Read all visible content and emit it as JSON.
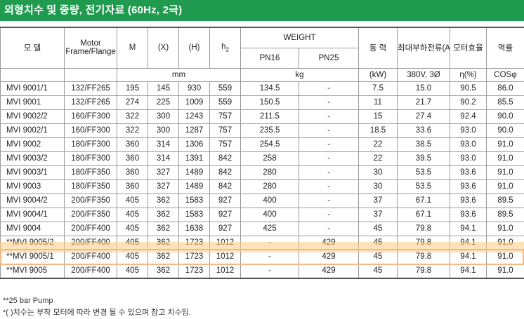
{
  "title": "외형치수 및 중량, 전기자료 (60Hz, 2극)",
  "headers": {
    "model": "모 델",
    "motor": "Motor",
    "frame": "Frame/Flange",
    "m": "M",
    "x": "(X)",
    "h": "(H)",
    "h2": "h",
    "h2_sub": "2",
    "weight": "WEIGHT",
    "pn16": "PN16",
    "pn25": "PN25",
    "power": "동 력",
    "current": "최대부하전류(A)",
    "efficiency": "모터효율",
    "pf": "역률"
  },
  "units": {
    "mm": "mm",
    "kg": "kg",
    "power": "(kW)",
    "current": "380V, 3Ø",
    "efficiency": "η(%)",
    "pf": "COSφ"
  },
  "rows": [
    {
      "model": "MVI 9001/1",
      "frame": "132/FF265",
      "m": "195",
      "x": "145",
      "h": "930",
      "h2": "559",
      "pn16": "134.5",
      "pn25": "-",
      "kw": "7.5",
      "amp": "15.0",
      "eff": "90.5",
      "pf": "86.0"
    },
    {
      "model": "MVI 9001",
      "frame": "132/FF265",
      "m": "274",
      "x": "225",
      "h": "1009",
      "h2": "559",
      "pn16": "150.5",
      "pn25": "-",
      "kw": "11",
      "amp": "21.7",
      "eff": "90.2",
      "pf": "85.5"
    },
    {
      "model": "MVI 9002/2",
      "frame": "160/FF300",
      "m": "322",
      "x": "300",
      "h": "1243",
      "h2": "757",
      "pn16": "211.5",
      "pn25": "-",
      "kw": "15",
      "amp": "27.4",
      "eff": "92.4",
      "pf": "90.0"
    },
    {
      "model": "MVI 9002/1",
      "frame": "160/FF300",
      "m": "322",
      "x": "300",
      "h": "1287",
      "h2": "757",
      "pn16": "235.5",
      "pn25": "-",
      "kw": "18.5",
      "amp": "33.6",
      "eff": "93.0",
      "pf": "90.0"
    },
    {
      "model": "MVI 9002",
      "frame": "180/FF300",
      "m": "360",
      "x": "314",
      "h": "1306",
      "h2": "757",
      "pn16": "254.5",
      "pn25": "-",
      "kw": "22",
      "amp": "38.5",
      "eff": "93.0",
      "pf": "91.0"
    },
    {
      "model": "MVI 9003/2",
      "frame": "180/FF300",
      "m": "360",
      "x": "314",
      "h": "1391",
      "h2": "842",
      "pn16": "258",
      "pn25": "-",
      "kw": "22",
      "amp": "39.5",
      "eff": "93.0",
      "pf": "91.0"
    },
    {
      "model": "MVI 9003/1",
      "frame": "180/FF350",
      "m": "360",
      "x": "327",
      "h": "1489",
      "h2": "842",
      "pn16": "280",
      "pn25": "-",
      "kw": "30",
      "amp": "53.5",
      "eff": "93.6",
      "pf": "91.0"
    },
    {
      "model": "MVI 9003",
      "frame": "180/FF350",
      "m": "360",
      "x": "327",
      "h": "1489",
      "h2": "842",
      "pn16": "280",
      "pn25": "-",
      "kw": "30",
      "amp": "53.5",
      "eff": "93.6",
      "pf": "91.0"
    },
    {
      "model": "MVI 9004/2",
      "frame": "200/FF350",
      "m": "405",
      "x": "362",
      "h": "1583",
      "h2": "927",
      "pn16": "400",
      "pn25": "-",
      "kw": "37",
      "amp": "67.1",
      "eff": "93.6",
      "pf": "89.5"
    },
    {
      "model": "MVI 9004/1",
      "frame": "200/FF350",
      "m": "405",
      "x": "362",
      "h": "1583",
      "h2": "927",
      "pn16": "400",
      "pn25": "-",
      "kw": "37",
      "amp": "67.1",
      "eff": "93.6",
      "pf": "89.5"
    },
    {
      "model": "MVI 9004",
      "frame": "200/FF400",
      "m": "405",
      "x": "362",
      "h": "1638",
      "h2": "927",
      "pn16": "425",
      "pn25": "-",
      "kw": "45",
      "amp": "79.8",
      "eff": "94.1",
      "pf": "91.0"
    },
    {
      "model": "**MVI 9005/2",
      "frame": "200/FF400",
      "m": "405",
      "x": "362",
      "h": "1723",
      "h2": "1012",
      "pn16": "-",
      "pn25": "429",
      "kw": "45",
      "amp": "79.8",
      "eff": "94.1",
      "pf": "91.0"
    },
    {
      "model": "**MVI 9005/1",
      "frame": "200/FF400",
      "m": "405",
      "x": "362",
      "h": "1723",
      "h2": "1012",
      "pn16": "-",
      "pn25": "429",
      "kw": "45",
      "amp": "79.8",
      "eff": "94.1",
      "pf": "91.0"
    },
    {
      "model": "**MVI 9005",
      "frame": "200/FF400",
      "m": "405",
      "x": "362",
      "h": "1723",
      "h2": "1012",
      "pn16": "-",
      "pn25": "429",
      "kw": "45",
      "amp": "79.8",
      "eff": "94.1",
      "pf": "91.0"
    }
  ],
  "footnotes": {
    "note1": "**25 bar Pump",
    "note2": "*(   )치수는 부착 모터에 따라 변경 될 수 있으며 참고 치수임."
  },
  "highlight_color": "#f6b880"
}
